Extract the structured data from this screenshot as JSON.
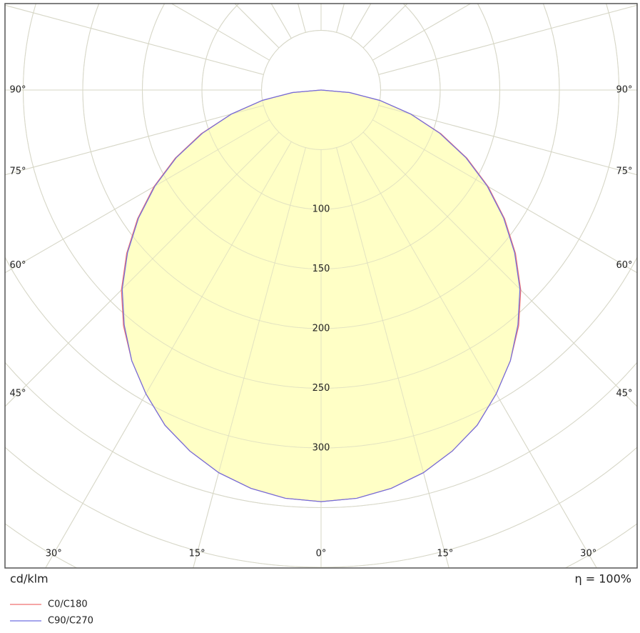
{
  "chart_data": {
    "type": "polar",
    "unit": "cd/klm",
    "efficiency": "η = 100%",
    "rlim": [
      0,
      480
    ],
    "rticks": [
      100,
      150,
      200,
      250,
      300
    ],
    "rgrid": [
      50,
      100,
      150,
      200,
      250,
      300,
      350,
      400,
      450
    ],
    "angle_ticks": [
      {
        "value": -90,
        "label": "90°"
      },
      {
        "value": -75,
        "label": "75°"
      },
      {
        "value": -60,
        "label": "60°"
      },
      {
        "value": -45,
        "label": "45°"
      },
      {
        "value": -30,
        "label": "30°"
      },
      {
        "value": -15,
        "label": "15°"
      },
      {
        "value": 0,
        "label": "0°"
      },
      {
        "value": 15,
        "label": "15°"
      },
      {
        "value": 30,
        "label": "30°"
      },
      {
        "value": 45,
        "label": "45°"
      },
      {
        "value": 60,
        "label": "60°"
      },
      {
        "value": 75,
        "label": "75°"
      },
      {
        "value": 90,
        "label": "90°"
      }
    ],
    "angles": [
      0,
      5,
      10,
      15,
      20,
      25,
      30,
      35,
      40,
      45,
      50,
      55,
      60,
      65,
      70,
      75,
      80,
      85,
      90
    ],
    "fill": "#ffffc0",
    "series": [
      {
        "name": "C0/C180",
        "color": "#f07070",
        "values": [
          345,
          343.5,
          339,
          332,
          322,
          310,
          294,
          277,
          258,
          237,
          213,
          188,
          162,
          135,
          107,
          78,
          50,
          24,
          0
        ]
      },
      {
        "name": "C90/C270",
        "color": "#6f6fe0",
        "values": [
          345,
          343.5,
          339,
          332,
          322,
          310,
          294,
          277,
          257,
          236,
          212,
          187,
          161,
          134,
          106,
          78,
          50,
          24,
          0
        ]
      }
    ]
  }
}
